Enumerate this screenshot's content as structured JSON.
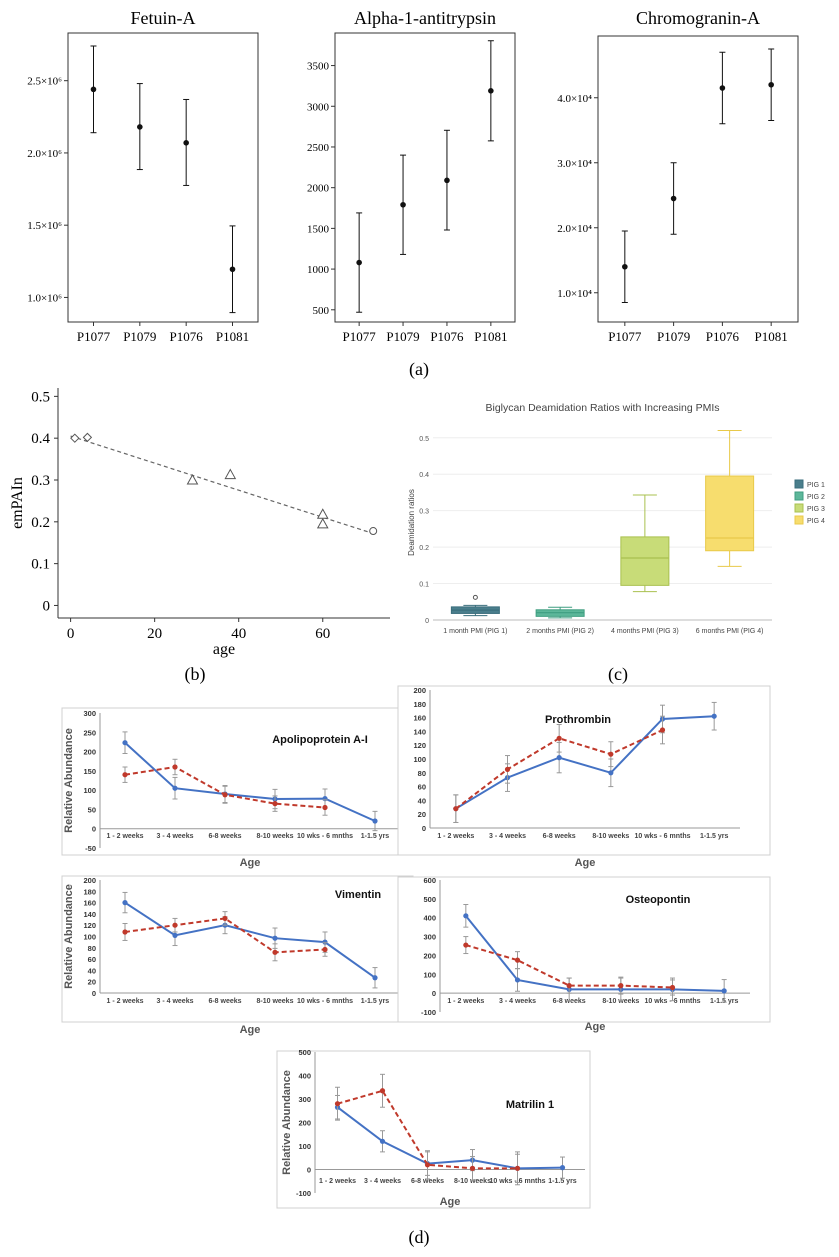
{
  "panel_labels": {
    "a": "(a)",
    "b": "(b)",
    "c": "(c)",
    "d": "(d)"
  },
  "chart_data": [
    {
      "id": "fetuin",
      "type": "scatter",
      "title": "Fetuin-A",
      "categories": [
        "P1077",
        "P1079",
        "P1076",
        "P1081"
      ],
      "values": [
        2440000,
        2180000,
        2070000,
        1195000
      ],
      "lower": [
        2140000,
        1885000,
        1775000,
        895000
      ],
      "upper": [
        2740000,
        2480000,
        2370000,
        1495000
      ],
      "yticks": [
        1000000,
        1500000,
        2000000,
        2500000
      ],
      "yticklabels": [
        "1.0×10⁶",
        "1.5×10⁶",
        "2.0×10⁶",
        "2.5×10⁶"
      ],
      "ylim": [
        830000,
        2830000
      ],
      "xlabel": "",
      "ylabel": ""
    },
    {
      "id": "alpha",
      "type": "scatter",
      "title": "Alpha-1-antitrypsin",
      "categories": [
        "P1077",
        "P1079",
        "P1076",
        "P1081"
      ],
      "values": [
        1080,
        1790,
        2090,
        3190
      ],
      "lower": [
        470,
        1180,
        1480,
        2575
      ],
      "upper": [
        1690,
        2400,
        2705,
        3805
      ],
      "yticks": [
        500,
        1000,
        1500,
        2000,
        2500,
        3000,
        3500
      ],
      "yticklabels": [
        "500",
        "1000",
        "1500",
        "2000",
        "2500",
        "3000",
        "3500"
      ],
      "ylim": [
        350,
        3900
      ],
      "xlabel": "",
      "ylabel": ""
    },
    {
      "id": "chromo",
      "type": "scatter",
      "title": "Chromogranin-A",
      "categories": [
        "P1077",
        "P1079",
        "P1076",
        "P1081"
      ],
      "values": [
        14000,
        24500,
        41500,
        42000
      ],
      "lower": [
        8500,
        19000,
        36000,
        36500
      ],
      "upper": [
        19500,
        30000,
        47000,
        47500
      ],
      "yticks": [
        10000,
        20000,
        30000,
        40000
      ],
      "yticklabels": [
        "1.0×10⁴",
        "2.0×10⁴",
        "3.0×10⁴",
        "4.0×10⁴"
      ],
      "ylim": [
        5500,
        49500
      ],
      "xlabel": "",
      "ylabel": ""
    },
    {
      "id": "empai",
      "type": "scatter",
      "title": "",
      "xlabel": "age",
      "ylabel": "emPAIn",
      "xticks": [
        0,
        20,
        40,
        60
      ],
      "xticklabels": [
        "0",
        "20",
        "40",
        "60"
      ],
      "yticks": [
        0,
        0.1,
        0.2,
        0.3,
        0.4,
        0.5
      ],
      "yticklabels": [
        "0",
        "0.1",
        "0.2",
        "0.3",
        "0.4",
        "0.5"
      ],
      "xlim": [
        -3,
        76
      ],
      "ylim": [
        -0.03,
        0.52
      ],
      "points": [
        {
          "x": 1,
          "y": 0.4,
          "marker": "diamond"
        },
        {
          "x": 4,
          "y": 0.402,
          "marker": "diamond"
        },
        {
          "x": 29,
          "y": 0.3,
          "marker": "triangle"
        },
        {
          "x": 38,
          "y": 0.313,
          "marker": "triangle"
        },
        {
          "x": 60,
          "y": 0.218,
          "marker": "triangle"
        },
        {
          "x": 60,
          "y": 0.195,
          "marker": "triangle"
        },
        {
          "x": 72,
          "y": 0.178,
          "marker": "circle"
        }
      ],
      "trendline": {
        "x": [
          0,
          72
        ],
        "y": [
          0.405,
          0.172
        ]
      }
    },
    {
      "id": "biglycan",
      "type": "box",
      "title": "Biglycan Deamidation Ratios with Increasing PMIs",
      "xlabel": "",
      "ylabel": "Deamidation ratios",
      "categories": [
        "1 month PMI (PIG 1)",
        "2 months PMI (PIG 2)",
        "4 months PMI (PIG 3)",
        "6 months PMI (PIG 4)"
      ],
      "legend": [
        "PIG 1",
        "PIG 2",
        "PIG 3",
        "PIG 4"
      ],
      "colors": [
        "#4a7e8c",
        "#5db79a",
        "#c8dc78",
        "#f7dd6e"
      ],
      "edge_colors": [
        "#3a6e7c",
        "#3f9e80",
        "#a9c04f",
        "#e8c94a"
      ],
      "boxes": [
        {
          "min": 0.012,
          "q1": 0.018,
          "median": 0.027,
          "q3": 0.036,
          "max": 0.04,
          "outliers": [
            0.062
          ]
        },
        {
          "min": 0.006,
          "q1": 0.01,
          "median": 0.02,
          "q3": 0.028,
          "max": 0.035,
          "outliers": []
        },
        {
          "min": 0.078,
          "q1": 0.095,
          "median": 0.17,
          "q3": 0.228,
          "max": 0.343,
          "outliers": []
        },
        {
          "min": 0.147,
          "q1": 0.19,
          "median": 0.225,
          "q3": 0.395,
          "max": 0.52,
          "outliers": []
        }
      ],
      "yticks": [
        0,
        0.1,
        0.2,
        0.3,
        0.4,
        0.5
      ],
      "yticklabels": [
        "0",
        "0.1",
        "0.2",
        "0.3",
        "0.4",
        "0.5"
      ],
      "ylim": [
        0,
        0.535
      ],
      "legend_position": "right"
    },
    {
      "id": "apo",
      "type": "line",
      "title": "Apolipoprotein A-I",
      "xlabel": "Age",
      "ylabel": "Relative Abundance",
      "categories": [
        "1 - 2 weeks",
        "3 - 4 weeks",
        "6-8 weeks",
        "8-10 weeks",
        "10 wks - 6 mnths",
        "1-1.5 yrs"
      ],
      "series": [
        {
          "name": "solid",
          "style": "solid",
          "color": "#4472c4",
          "values": [
            223,
            105,
            90,
            77,
            78,
            20
          ],
          "err": [
            28,
            28,
            22,
            25,
            25,
            25
          ]
        },
        {
          "name": "dashed",
          "style": "dashed",
          "color": "#c0392b",
          "values": [
            140,
            160,
            88,
            65,
            55,
            null
          ],
          "err": [
            20,
            20,
            22,
            20,
            20,
            null
          ]
        }
      ],
      "yticks": [
        -50,
        0,
        50,
        100,
        150,
        200,
        250,
        300
      ],
      "yticklabels": [
        "-50",
        "0",
        "50",
        "100",
        "150",
        "200",
        "250",
        "300"
      ],
      "ylim": [
        -50,
        300
      ]
    },
    {
      "id": "pro",
      "type": "line",
      "title": "Prothrombin",
      "xlabel": "Age",
      "ylabel": "",
      "categories": [
        "1 - 2 weeks",
        "3 - 4 weeks",
        "6-8 weeks",
        "8-10 weeks",
        "10 wks - 6 mnths",
        "1-1.5 yrs"
      ],
      "series": [
        {
          "name": "solid",
          "style": "solid",
          "color": "#4472c4",
          "values": [
            28,
            73,
            102,
            80,
            158,
            162
          ],
          "err": [
            20,
            20,
            22,
            20,
            20,
            20
          ]
        },
        {
          "name": "dashed",
          "style": "dashed",
          "color": "#c0392b",
          "values": [
            28,
            85,
            130,
            107,
            142,
            null
          ],
          "err": [
            20,
            20,
            20,
            18,
            20,
            null
          ]
        }
      ],
      "yticks": [
        0,
        20,
        40,
        60,
        80,
        100,
        120,
        140,
        160,
        180,
        200
      ],
      "yticklabels": [
        "0",
        "20",
        "40",
        "60",
        "80",
        "100",
        "120",
        "140",
        "160",
        "180",
        "200"
      ],
      "ylim": [
        0,
        200
      ]
    },
    {
      "id": "vim",
      "type": "line",
      "title": "Vimentin",
      "xlabel": "Age",
      "ylabel": "Relative Abundance",
      "categories": [
        "1 - 2 weeks",
        "3 - 4 weeks",
        "6-8 weeks",
        "8-10 weeks",
        "10 wks - 6 mnths",
        "1-1.5 yrs"
      ],
      "series": [
        {
          "name": "solid",
          "style": "solid",
          "color": "#4472c4",
          "values": [
            160,
            102,
            120,
            97,
            90,
            27
          ],
          "err": [
            18,
            18,
            15,
            18,
            18,
            18
          ]
        },
        {
          "name": "dashed",
          "style": "dashed",
          "color": "#c0392b",
          "values": [
            108,
            120,
            132,
            72,
            77,
            null
          ],
          "err": [
            15,
            12,
            12,
            15,
            12,
            null
          ]
        }
      ],
      "yticks": [
        0,
        20,
        40,
        60,
        80,
        100,
        120,
        140,
        160,
        180,
        200
      ],
      "yticklabels": [
        "0",
        "20",
        "40",
        "60",
        "80",
        "100",
        "120",
        "140",
        "160",
        "180",
        "200"
      ],
      "ylim": [
        0,
        200
      ]
    },
    {
      "id": "osteo",
      "type": "line",
      "title": "Osteopontin",
      "xlabel": "Age",
      "ylabel": "",
      "categories": [
        "1 - 2 weeks",
        "3 - 4 weeks",
        "6-8 weeks",
        "8-10 weeks",
        "10 wks - 6 mnths",
        "1-1.5 yrs"
      ],
      "series": [
        {
          "name": "solid",
          "style": "solid",
          "color": "#4472c4",
          "values": [
            410,
            70,
            20,
            20,
            20,
            12
          ],
          "err": [
            60,
            60,
            60,
            60,
            60,
            60
          ]
        },
        {
          "name": "dashed",
          "style": "dashed",
          "color": "#c0392b",
          "values": [
            255,
            175,
            40,
            40,
            30,
            null
          ],
          "err": [
            45,
            45,
            40,
            45,
            40,
            null
          ]
        }
      ],
      "yticks": [
        -100,
        0,
        100,
        200,
        300,
        400,
        500,
        600
      ],
      "yticklabels": [
        "-100",
        "0",
        "100",
        "200",
        "300",
        "400",
        "500",
        "600"
      ],
      "ylim": [
        -100,
        600
      ]
    },
    {
      "id": "mat",
      "type": "line",
      "title": "Matrilin 1",
      "xlabel": "Age",
      "ylabel": "Relative Abundance",
      "categories": [
        "1 - 2 weeks",
        "3 - 4 weeks",
        "6-8 weeks",
        "8-10 weeks",
        "10 wks - 6 mnths",
        "1-1.5 yrs"
      ],
      "series": [
        {
          "name": "solid",
          "style": "solid",
          "color": "#4472c4",
          "values": [
            265,
            120,
            25,
            40,
            5,
            8
          ],
          "err": [
            50,
            45,
            50,
            45,
            60,
            45
          ]
        },
        {
          "name": "dashed",
          "style": "dashed",
          "color": "#c0392b",
          "values": [
            280,
            335,
            20,
            5,
            5,
            null
          ],
          "err": [
            70,
            70,
            60,
            50,
            70,
            null
          ]
        }
      ],
      "yticks": [
        -100,
        0,
        100,
        200,
        300,
        400,
        500
      ],
      "yticklabels": [
        "-100",
        "0",
        "100",
        "200",
        "300",
        "400",
        "500"
      ],
      "ylim": [
        -100,
        500
      ]
    }
  ]
}
